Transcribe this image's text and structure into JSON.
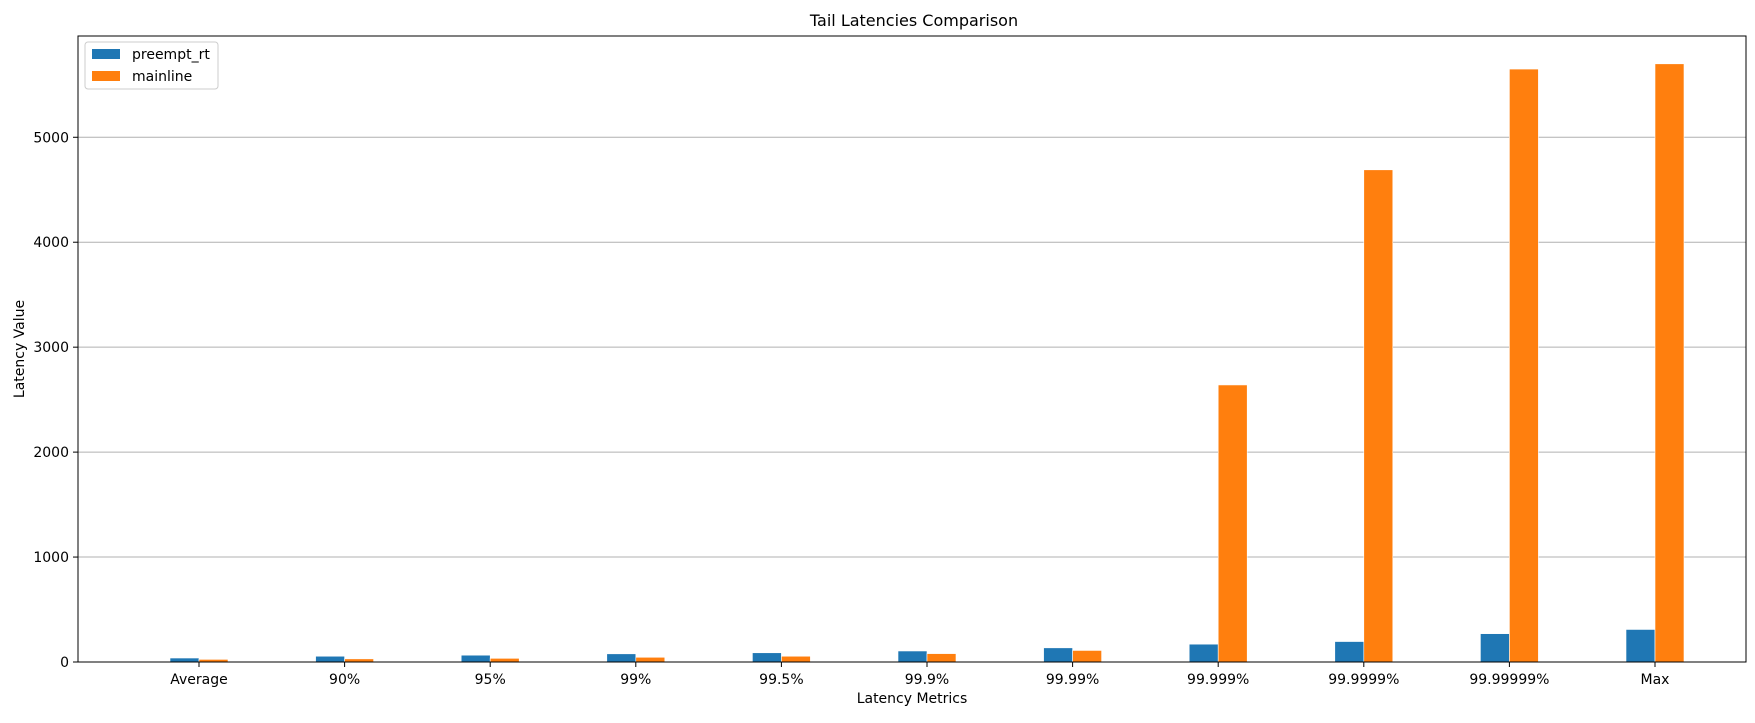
{
  "chart_data": {
    "type": "bar",
    "title": "Tail Latencies Comparison",
    "xlabel": "Latency Metrics",
    "ylabel": "Latency Value",
    "categories": [
      "Average",
      "90%",
      "95%",
      "99%",
      "99.5%",
      "99.9%",
      "99.99%",
      "99.999%",
      "99.9999%",
      "99.99999%",
      "Max"
    ],
    "series": [
      {
        "name": "preempt_rt",
        "color": "#1f77b4",
        "values": [
          38,
          55,
          65,
          78,
          88,
          105,
          135,
          170,
          195,
          270,
          310
        ]
      },
      {
        "name": "mainline",
        "color": "#ff7f0e",
        "values": [
          25,
          30,
          35,
          45,
          55,
          80,
          110,
          2640,
          4690,
          5650,
          5700
        ]
      }
    ],
    "ylim": [
      0,
      5965
    ],
    "yticks": [
      0,
      1000,
      2000,
      3000,
      4000,
      5000
    ],
    "grid": "y",
    "legend_position": "top-left"
  }
}
